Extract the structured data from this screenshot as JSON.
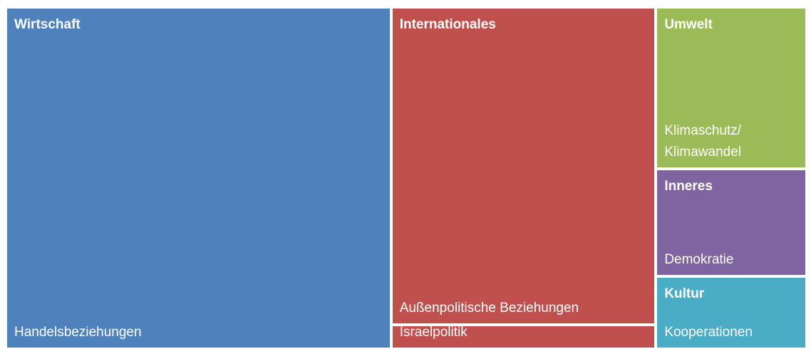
{
  "chart_data": {
    "type": "treemap",
    "groups": [
      {
        "name": "Wirtschaft",
        "color": "#4f81bd",
        "children": [
          {
            "name": "Handelsbeziehungen",
            "value": 47
          }
        ]
      },
      {
        "name": "Internationales",
        "color": "#c0504d",
        "children": [
          {
            "name": "Außenpolitische Beziehungen",
            "value": 30
          },
          {
            "name": "Israelpolitik",
            "value": 2.3
          }
        ]
      },
      {
        "name": "Umwelt",
        "color": "#9bbb59",
        "children": [
          {
            "name": "Klimaschutz/ Klimawandel",
            "value": 8.7
          }
        ]
      },
      {
        "name": "Inneres",
        "color": "#8064a2",
        "children": [
          {
            "name": "Demokratie",
            "value": 5.8
          }
        ]
      },
      {
        "name": "Kultur",
        "color": "#4bacc6",
        "children": [
          {
            "name": "Kooperationen",
            "value": 3.9
          }
        ]
      }
    ]
  }
}
